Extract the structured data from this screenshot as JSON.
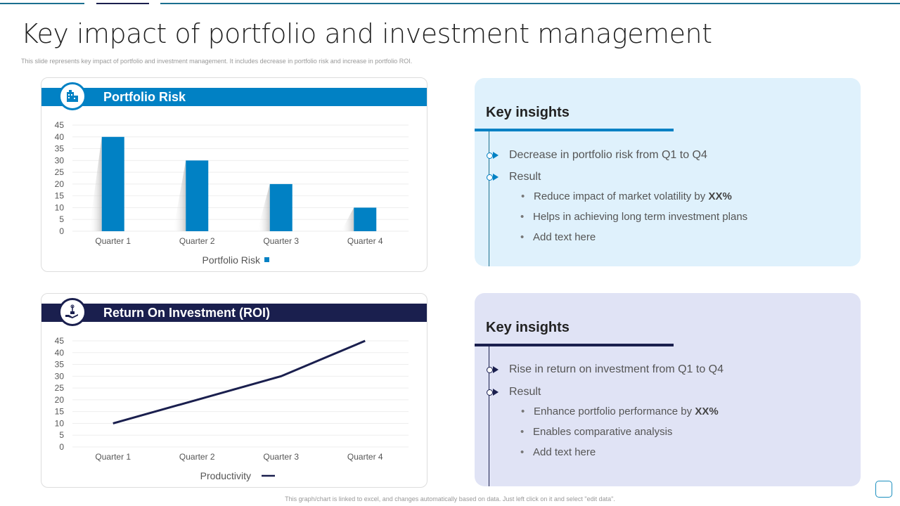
{
  "title": "Key impact of portfolio and investment management",
  "subtitle": "This slide represents key impact of portfolio and investment management.  It includes decrease in portfolio risk and increase in portfolio ROI.",
  "footer": "This graph/chart is linked to excel, and changes automatically based on data. Just left click on it and select \"edit data\".",
  "colors": {
    "blue": "#0181c4",
    "navy": "#1a1f4e",
    "panel1": "#dff1fc",
    "panel2": "#e0e3f5",
    "teal": "#1b6f8f"
  },
  "chart_data": [
    {
      "type": "bar",
      "title": "Portfolio Risk",
      "icon": "building-icon",
      "categories": [
        "Quarter 1",
        "Quarter 2",
        "Quarter 3",
        "Quarter 4"
      ],
      "series": [
        {
          "name": "Portfolio Risk",
          "values": [
            40,
            30,
            20,
            10
          ]
        }
      ],
      "yticks": [
        "0",
        "5",
        "10",
        "15",
        "20",
        "25",
        "30",
        "35",
        "40",
        "45"
      ],
      "ylim": [
        0,
        45
      ],
      "grid": true,
      "legend": "bottom"
    },
    {
      "type": "line",
      "title": "Return On Investment (ROI)",
      "icon": "hand-money-plant-icon",
      "categories": [
        "Quarter 1",
        "Quarter 2",
        "Quarter 3",
        "Quarter 4"
      ],
      "series": [
        {
          "name": "Productivity",
          "values": [
            10,
            20,
            30,
            45
          ]
        }
      ],
      "yticks": [
        "0",
        "5",
        "10",
        "15",
        "20",
        "25",
        "30",
        "35",
        "40",
        "45"
      ],
      "ylim": [
        0,
        45
      ],
      "grid": true,
      "legend": "bottom"
    }
  ],
  "insights": [
    {
      "heading": "Key insights",
      "point": "Decrease in portfolio risk from Q1 to Q4",
      "result": "Result",
      "bullets": [
        {
          "text": "Reduce impact of market volatility  by ",
          "bold": "XX%"
        },
        {
          "text": "Helps in achieving long term investment plans",
          "bold": ""
        },
        {
          "text": "Add text here",
          "bold": ""
        }
      ]
    },
    {
      "heading": "Key insights",
      "point": "Rise in return on investment from Q1 to Q4",
      "result": "Result",
      "bullets": [
        {
          "text": "Enhance portfolio performance by ",
          "bold": "XX%"
        },
        {
          "text": "Enables comparative analysis",
          "bold": ""
        },
        {
          "text": "Add text here",
          "bold": ""
        }
      ]
    }
  ]
}
